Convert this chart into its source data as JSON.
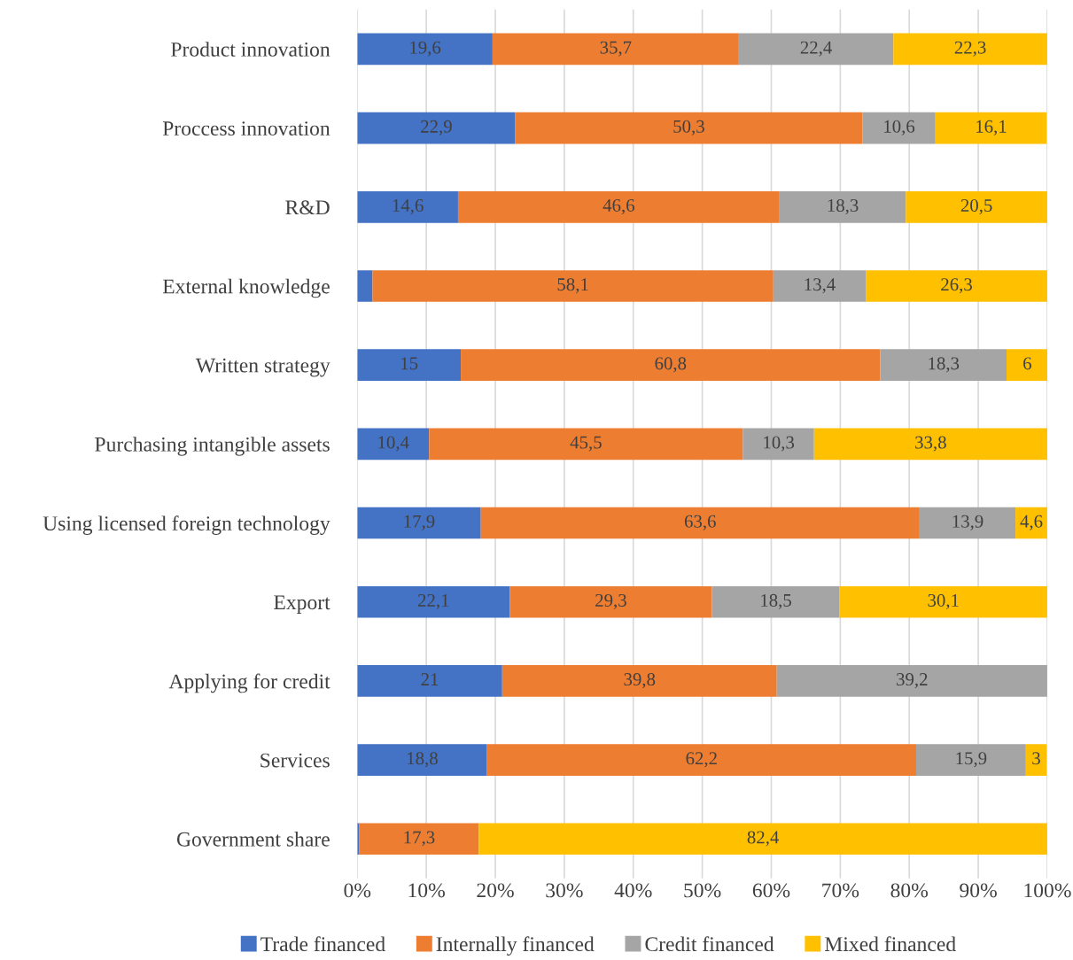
{
  "chart_data": {
    "type": "bar",
    "orientation": "horizontal",
    "stacked": true,
    "categories": [
      "Product innovation",
      "Proccess innovation",
      "R&D",
      "External knowledge",
      "Written strategy",
      "Purchasing intangible assets",
      "Using licensed foreign technology",
      "Export",
      "Applying for credit",
      "Services",
      "Government share"
    ],
    "series": [
      {
        "name": "Trade financed",
        "color": "#4472c4",
        "values": [
          19.6,
          22.9,
          14.6,
          2.2,
          15,
          10.4,
          17.9,
          22.1,
          21,
          18.8,
          0.3
        ],
        "value_labels": [
          "19,6",
          "22,9",
          "14,6",
          null,
          "15",
          "10,4",
          "17,9",
          "22,1",
          "21",
          "18,8",
          null
        ]
      },
      {
        "name": "Internally financed",
        "color": "#ed7d31",
        "values": [
          35.7,
          50.3,
          46.6,
          58.1,
          60.8,
          45.5,
          63.6,
          29.3,
          39.8,
          62.2,
          17.3
        ],
        "value_labels": [
          "35,7",
          "50,3",
          "46,6",
          "58,1",
          "60,8",
          "45,5",
          "63,6",
          "29,3",
          "39,8",
          "62,2",
          "17,3"
        ]
      },
      {
        "name": "Credit financed",
        "color": "#a5a5a5",
        "values": [
          22.4,
          10.6,
          18.3,
          13.4,
          18.3,
          10.3,
          13.9,
          18.5,
          39.2,
          15.9,
          null
        ],
        "value_labels": [
          "22,4",
          "10,6",
          "18,3",
          "13,4",
          "18,3",
          "10,3",
          "13,9",
          "18,5",
          "39,2",
          "15,9",
          null
        ]
      },
      {
        "name": "Mixed financed",
        "color": "#ffc000",
        "values": [
          22.3,
          16.1,
          20.5,
          26.3,
          6,
          33.8,
          4.6,
          30.1,
          null,
          3,
          82.4
        ],
        "value_labels": [
          "22,3",
          "16,1",
          "20,5",
          "26,3",
          "6",
          "33,8",
          "4,6",
          "30,1",
          null,
          "3",
          "82,4"
        ]
      }
    ],
    "xlim": [
      0,
      100
    ],
    "xticks": [
      {
        "value": 0,
        "label": "0%"
      },
      {
        "value": 10,
        "label": "10%"
      },
      {
        "value": 20,
        "label": "20%"
      },
      {
        "value": 30,
        "label": "30%"
      },
      {
        "value": 40,
        "label": "40%"
      },
      {
        "value": 50,
        "label": "50%"
      },
      {
        "value": 60,
        "label": "60%"
      },
      {
        "value": 70,
        "label": "70%"
      },
      {
        "value": 80,
        "label": "80%"
      },
      {
        "value": 90,
        "label": "90%"
      },
      {
        "value": 100,
        "label": "100%"
      }
    ],
    "grid": "x",
    "legend": "bottom"
  }
}
